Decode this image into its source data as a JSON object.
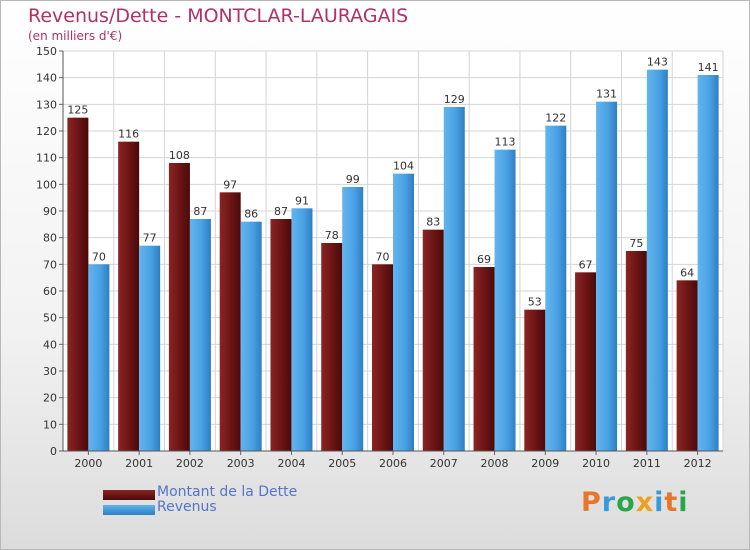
{
  "header": {
    "title": "Revenus/Dette - MONTCLAR-LAURAGAIS",
    "subtitle": "(en milliers d'€)"
  },
  "colors": {
    "dette": "#7a1a1a",
    "revenus": "#4ea6e8"
  },
  "legend": {
    "placement": "bottom-left",
    "items": [
      {
        "label": "Montant de la Dette",
        "color": "#7a1a1a"
      },
      {
        "label": "Revenus",
        "color": "#4ea6e8"
      }
    ]
  },
  "logo": {
    "letters": [
      {
        "ch": "P",
        "color": "#e8762a"
      },
      {
        "ch": "r",
        "color": "#3a9ad9"
      },
      {
        "ch": "o",
        "color": "#2aa64a"
      },
      {
        "ch": "x",
        "color": "#f0a020"
      },
      {
        "ch": "i",
        "color": "#3a9ad9"
      },
      {
        "ch": "t",
        "color": "#e8762a"
      },
      {
        "ch": "i",
        "color": "#2aa64a"
      }
    ]
  },
  "chart_data": {
    "type": "bar",
    "title": "Revenus/Dette - MONTCLAR-LAURAGAIS",
    "subtitle": "(en milliers d'€)",
    "categories": [
      "2000",
      "2001",
      "2002",
      "2003",
      "2004",
      "2005",
      "2006",
      "2007",
      "2008",
      "2009",
      "2010",
      "2011",
      "2012"
    ],
    "series": [
      {
        "name": "Montant de la Dette",
        "values": [
          125,
          116,
          108,
          97,
          87,
          78,
          70,
          83,
          69,
          53,
          67,
          75,
          64
        ]
      },
      {
        "name": "Revenus",
        "values": [
          70,
          77,
          87,
          86,
          91,
          99,
          104,
          129,
          113,
          122,
          131,
          143,
          141
        ]
      }
    ],
    "ylim": [
      0,
      150
    ],
    "yticks": [
      0,
      10,
      20,
      30,
      40,
      50,
      60,
      70,
      80,
      90,
      100,
      110,
      120,
      130,
      140,
      150
    ],
    "grid": true,
    "legend": "bottom-left"
  }
}
